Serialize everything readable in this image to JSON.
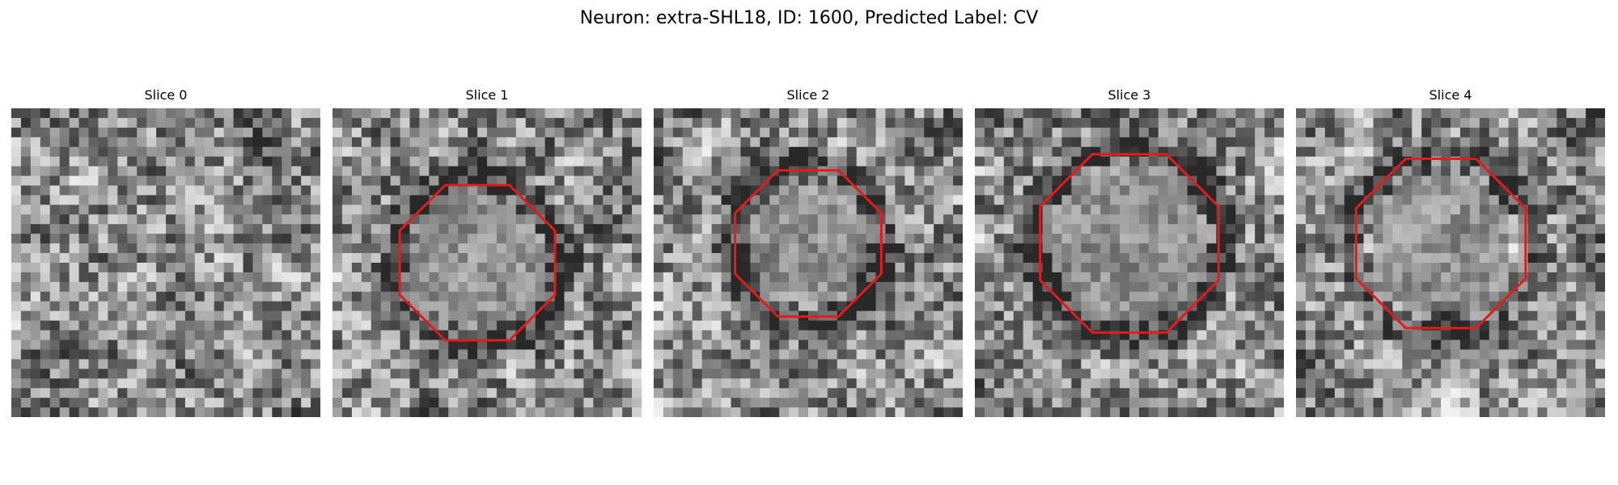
{
  "figure": {
    "title": "Neuron: extra-SHL18, ID: 1600, Predicted Label: CV"
  },
  "colors": {
    "contour": "#e41a1c",
    "colormap": "gray"
  },
  "panels": [
    {
      "label": "Slice 0",
      "has_contour": false
    },
    {
      "label": "Slice 1",
      "has_contour": true
    },
    {
      "label": "Slice 2",
      "has_contour": true
    },
    {
      "label": "Slice 3",
      "has_contour": true
    },
    {
      "label": "Slice 4",
      "has_contour": true
    }
  ]
}
